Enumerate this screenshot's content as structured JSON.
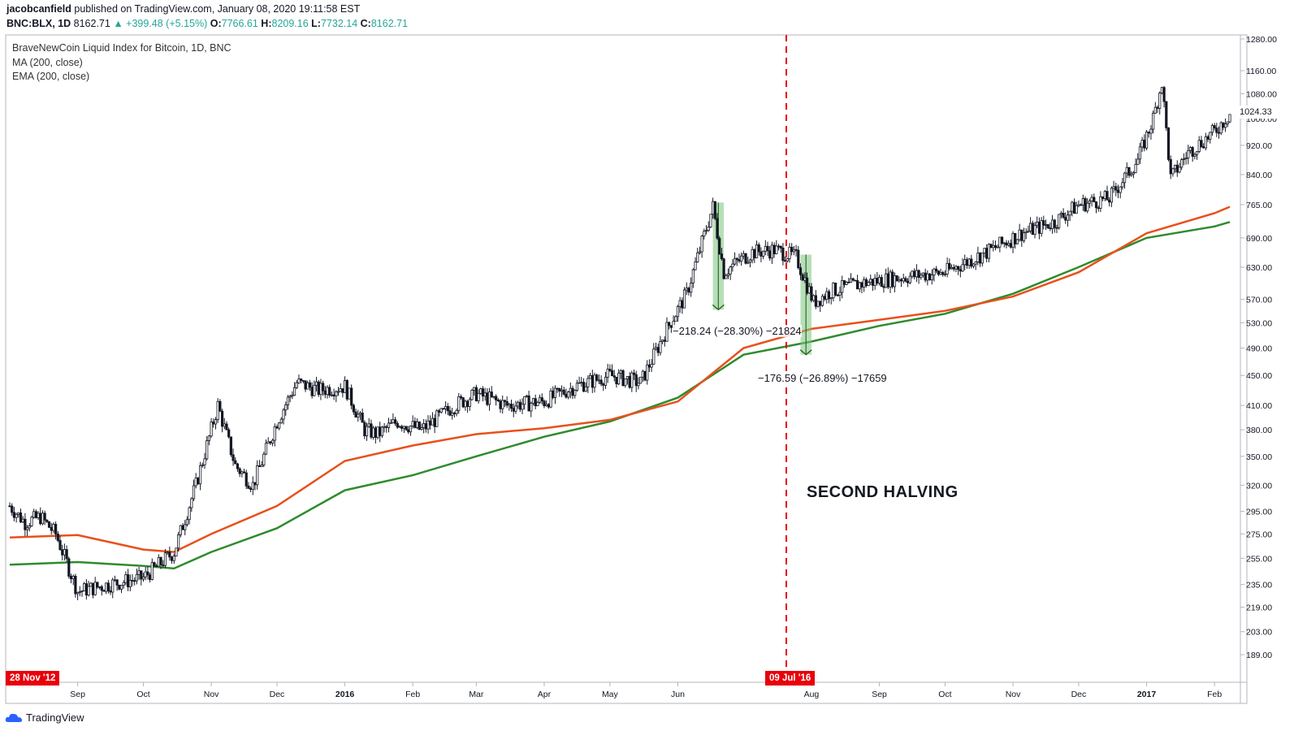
{
  "header": {
    "author": "jacobcanfield",
    "published": "published on TradingView.com, January 08, 2020 19:11:58 EST",
    "symbol": "BNC:BLX, 1D",
    "last": "8162.71",
    "change": "▲ +399.48 (+5.15%)",
    "o_label": "O:",
    "o": "7766.61",
    "h_label": "H:",
    "h": "8209.16",
    "l_label": "L:",
    "l": "7732.14",
    "c_label": "C:",
    "c": "8162.71"
  },
  "legend": {
    "title": "BraveNewCoin Liquid Index for Bitcoin, 1D, BNC",
    "ma": "MA (200, close)",
    "ema": "EMA (200, close)"
  },
  "annotations": {
    "halving_label": "SECOND HALVING",
    "halving_date": "09 Jul '16",
    "start_date": "28 Nov '12",
    "drop1": "−218.24 (−28.30%) −21824",
    "drop2": "−176.59 (−26.89%) −17659",
    "current_price": "1024.33"
  },
  "footer": {
    "brand": "TradingView"
  },
  "colors": {
    "ema": "#e8501b",
    "ma": "#2e8b2e",
    "halving_line": "#e8000a",
    "candle": "#131722",
    "measure_fill": "#7cc47c"
  },
  "chart_data": {
    "type": "line",
    "y_scale": "log",
    "yticks": [
      "1280.00",
      "1160.00",
      "1080.00",
      "1000.00",
      "920.00",
      "840.00",
      "765.00",
      "690.00",
      "630.00",
      "570.00",
      "530.00",
      "490.00",
      "450.00",
      "410.00",
      "380.00",
      "350.00",
      "320.00",
      "295.00",
      "275.00",
      "255.00",
      "235.00",
      "219.00",
      "203.00",
      "189.00"
    ],
    "xticks": [
      "Sep",
      "Oct",
      "Nov",
      "Dec",
      "2016",
      "Feb",
      "Mar",
      "Apr",
      "May",
      "Jun",
      "Aug",
      "Sep",
      "Oct",
      "Nov",
      "Dec",
      "2017",
      "Feb"
    ],
    "ylim": [
      180,
      1300
    ],
    "series": [
      {
        "name": "BraveNewCoin Liquid Index for Bitcoin, 1D, BNC",
        "x": [
          "2015-08-01",
          "2015-08-08",
          "2015-08-15",
          "2015-08-22",
          "2015-09-01",
          "2015-09-15",
          "2015-10-01",
          "2015-10-15",
          "2015-10-25",
          "2015-11-04",
          "2015-11-12",
          "2015-11-20",
          "2015-12-01",
          "2015-12-10",
          "2015-12-20",
          "2016-01-01",
          "2016-01-10",
          "2016-01-16",
          "2016-01-25",
          "2016-02-05",
          "2016-02-20",
          "2016-03-01",
          "2016-03-15",
          "2016-04-01",
          "2016-04-15",
          "2016-05-01",
          "2016-05-15",
          "2016-05-27",
          "2016-06-05",
          "2016-06-12",
          "2016-06-17",
          "2016-06-22",
          "2016-06-28",
          "2016-07-05",
          "2016-07-15",
          "2016-07-25",
          "2016-08-02",
          "2016-08-10",
          "2016-08-25",
          "2016-09-10",
          "2016-10-01",
          "2016-10-20",
          "2016-11-05",
          "2016-11-20",
          "2016-12-01",
          "2016-12-15",
          "2016-12-28",
          "2017-01-04",
          "2017-01-08",
          "2017-01-12",
          "2017-01-20",
          "2017-02-01",
          "2017-02-08"
        ],
        "values": [
          300,
          285,
          290,
          275,
          230,
          235,
          240,
          260,
          320,
          410,
          340,
          320,
          390,
          440,
          430,
          435,
          380,
          375,
          390,
          380,
          410,
          425,
          410,
          415,
          435,
          450,
          440,
          520,
          580,
          680,
          760,
          620,
          640,
          660,
          665,
          650,
          565,
          585,
          600,
          610,
          620,
          660,
          700,
          725,
          765,
          780,
          880,
          1000,
          1120,
          830,
          900,
          960,
          1015
        ]
      },
      {
        "name": "EMA (200, close)",
        "x": [
          "2015-08-01",
          "2015-09-01",
          "2015-10-01",
          "2015-10-15",
          "2015-11-01",
          "2015-12-01",
          "2016-01-01",
          "2016-02-01",
          "2016-03-01",
          "2016-04-01",
          "2016-05-01",
          "2016-06-01",
          "2016-07-01",
          "2016-08-01",
          "2016-09-01",
          "2016-10-01",
          "2016-11-01",
          "2016-12-01",
          "2017-01-01",
          "2017-02-01",
          "2017-02-08"
        ],
        "values": [
          272,
          274,
          262,
          260,
          275,
          300,
          345,
          362,
          375,
          382,
          392,
          415,
          490,
          520,
          535,
          550,
          575,
          620,
          700,
          745,
          760
        ]
      },
      {
        "name": "MA (200, close)",
        "x": [
          "2015-08-01",
          "2015-09-01",
          "2015-10-01",
          "2015-10-15",
          "2015-11-01",
          "2015-12-01",
          "2016-01-01",
          "2016-02-01",
          "2016-03-01",
          "2016-04-01",
          "2016-05-01",
          "2016-06-01",
          "2016-07-01",
          "2016-08-01",
          "2016-09-01",
          "2016-10-01",
          "2016-11-01",
          "2016-12-01",
          "2017-01-01",
          "2017-02-01",
          "2017-02-08"
        ],
        "values": [
          250,
          252,
          249,
          247,
          260,
          280,
          315,
          330,
          350,
          372,
          390,
          420,
          480,
          500,
          525,
          545,
          580,
          630,
          690,
          715,
          725
        ]
      }
    ]
  }
}
